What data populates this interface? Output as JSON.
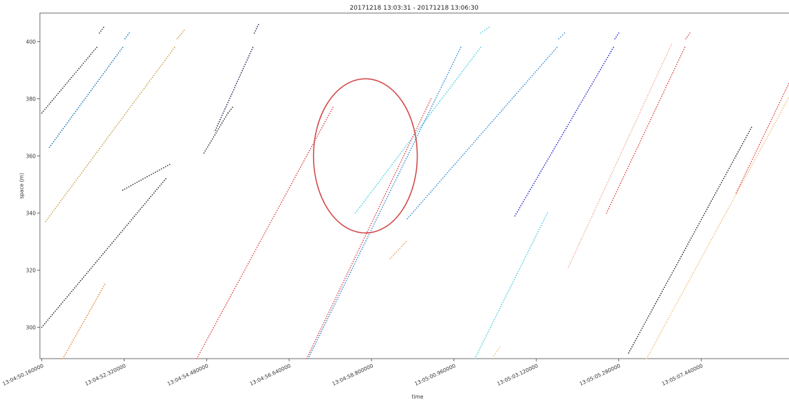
{
  "chart_data": {
    "type": "scatter",
    "title": "20171218 13:03:31 - 20171218 13:06:30",
    "xlabel": "time",
    "ylabel": "space (m)",
    "x_unit": "seconds after 13:04:50.160000",
    "xlim": [
      -0.05,
      19.6
    ],
    "ylim": [
      289,
      410
    ],
    "grid": false,
    "x_ticks": [
      {
        "value": 0.0,
        "label": "13:04:50.160000"
      },
      {
        "value": 2.16,
        "label": "13:04:52.320000"
      },
      {
        "value": 4.32,
        "label": "13:04:54.480000"
      },
      {
        "value": 6.48,
        "label": "13:04:56.640000"
      },
      {
        "value": 8.64,
        "label": "13:04:58.800000"
      },
      {
        "value": 10.8,
        "label": "13:05:00.960000"
      },
      {
        "value": 12.96,
        "label": "13:05:03.120000"
      },
      {
        "value": 15.12,
        "label": "13:05:05.280000"
      },
      {
        "value": 17.28,
        "label": "13:05:07.440000"
      }
    ],
    "y_ticks": [
      300,
      320,
      340,
      360,
      380,
      400
    ],
    "series": [
      {
        "color": "#333333",
        "points": [
          [
            0.0,
            375
          ],
          [
            1.44,
            398
          ]
        ]
      },
      {
        "color": "#333333",
        "points": [
          [
            1.51,
            403
          ],
          [
            1.62,
            405
          ]
        ]
      },
      {
        "color": "#1f77b4",
        "points": [
          [
            0.2,
            363
          ],
          [
            2.12,
            398
          ]
        ]
      },
      {
        "color": "#1f77b4",
        "points": [
          [
            2.18,
            401
          ],
          [
            2.29,
            403
          ]
        ]
      },
      {
        "color": "#c8a050",
        "points": [
          [
            0.1,
            337
          ],
          [
            3.48,
            398
          ]
        ]
      },
      {
        "color": "#c8a050",
        "points": [
          [
            3.55,
            401
          ],
          [
            3.73,
            404
          ]
        ]
      },
      {
        "color": "#333333",
        "points": [
          [
            4.25,
            361
          ],
          [
            4.88,
            375
          ]
        ]
      },
      {
        "color": "#333333",
        "points": [
          [
            4.88,
            375
          ],
          [
            5.0,
            377
          ]
        ]
      },
      {
        "color": "#2c2c2c",
        "points": [
          [
            0.0,
            300
          ],
          [
            3.25,
            352
          ]
        ]
      },
      {
        "color": "#333333",
        "points": [
          [
            2.12,
            348
          ],
          [
            3.35,
            357
          ]
        ]
      },
      {
        "color": "#2a2a5a",
        "points": [
          [
            4.55,
            369
          ],
          [
            5.53,
            398
          ]
        ]
      },
      {
        "color": "#2a2a5a",
        "points": [
          [
            5.57,
            403
          ],
          [
            5.68,
            406
          ]
        ]
      },
      {
        "color": "#e08a3c",
        "points": [
          [
            0.55,
            289
          ],
          [
            1.65,
            315
          ]
        ]
      },
      {
        "color": "#e05050",
        "points": [
          [
            4.06,
            289
          ],
          [
            7.63,
            377
          ]
        ]
      },
      {
        "color": "#3a8fd6",
        "points": [
          [
            6.98,
            289
          ],
          [
            10.98,
            398
          ]
        ]
      },
      {
        "color": "#4fd0e0",
        "points": [
          [
            8.22,
            340
          ],
          [
            11.5,
            398
          ]
        ]
      },
      {
        "color": "#4fd0e0",
        "points": [
          [
            11.5,
            403
          ],
          [
            11.72,
            405
          ]
        ]
      },
      {
        "color": "#e05050",
        "points": [
          [
            6.94,
            289
          ],
          [
            10.2,
            380
          ]
        ]
      },
      {
        "color": "#3a8fd6",
        "points": [
          [
            9.58,
            338
          ],
          [
            13.5,
            398
          ]
        ]
      },
      {
        "color": "#3a8fd6",
        "points": [
          [
            13.55,
            401
          ],
          [
            13.7,
            403
          ]
        ]
      },
      {
        "color": "#f0a060",
        "points": [
          [
            9.13,
            324
          ],
          [
            9.55,
            330
          ]
        ]
      },
      {
        "color": "#4fd0e0",
        "points": [
          [
            11.35,
            289
          ],
          [
            13.25,
            340
          ]
        ]
      },
      {
        "color": "#f2c080",
        "points": [
          [
            11.85,
            290
          ],
          [
            12.0,
            293
          ]
        ]
      },
      {
        "color": "#2a2ad0",
        "points": [
          [
            12.4,
            339
          ],
          [
            14.98,
            398
          ]
        ]
      },
      {
        "color": "#2a2ad0",
        "points": [
          [
            15.02,
            401
          ],
          [
            15.12,
            403
          ]
        ]
      },
      {
        "color": "#f0b0a0",
        "points": [
          [
            13.8,
            321
          ],
          [
            16.5,
            399
          ]
        ]
      },
      {
        "color": "#e05050",
        "points": [
          [
            14.8,
            340
          ],
          [
            16.85,
            398
          ]
        ]
      },
      {
        "color": "#e05050",
        "points": [
          [
            16.88,
            401
          ],
          [
            16.98,
            403
          ]
        ]
      },
      {
        "color": "#2c2c2c",
        "points": [
          [
            15.38,
            291
          ],
          [
            18.6,
            370
          ]
        ]
      },
      {
        "color": "#f2c080",
        "points": [
          [
            15.85,
            289
          ],
          [
            19.6,
            381
          ]
        ]
      },
      {
        "color": "#e05050",
        "points": [
          [
            18.2,
            347
          ],
          [
            19.6,
            386
          ]
        ]
      }
    ],
    "annotation": {
      "shape": "ellipse",
      "color": "#d24a4a",
      "center": [
        8.48,
        360
      ],
      "radii": [
        1.36,
        27
      ]
    }
  }
}
